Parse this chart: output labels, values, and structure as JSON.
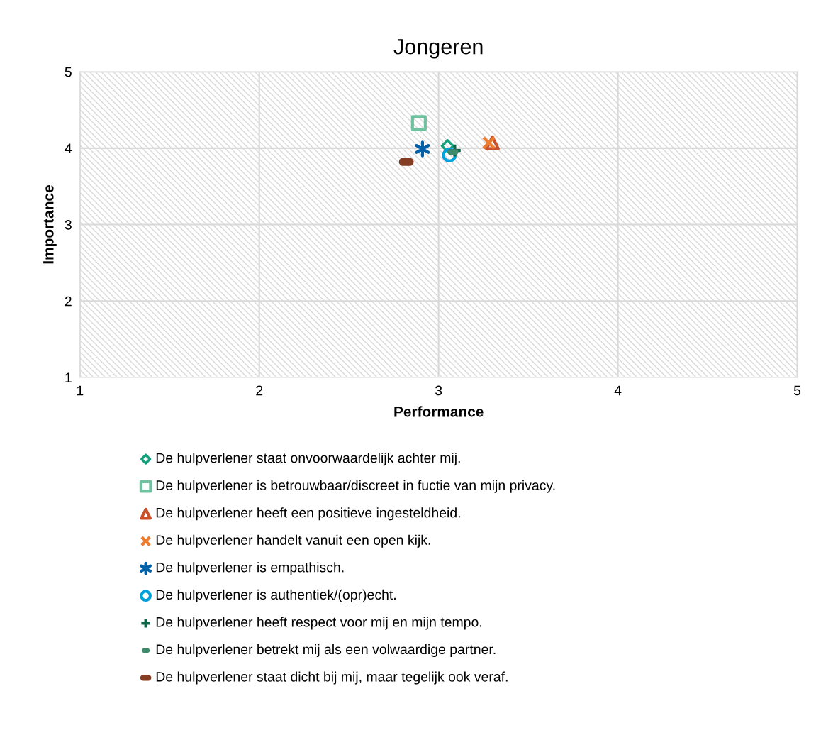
{
  "chart_data": {
    "type": "scatter",
    "title": "Jongeren",
    "xlabel": "Performance",
    "ylabel": "Importance",
    "xlim": [
      1,
      5
    ],
    "xticks": [
      1,
      2,
      3,
      4,
      5
    ],
    "ylim": [
      1,
      5
    ],
    "yticks": [
      1,
      2,
      3,
      4,
      5
    ],
    "grid": true,
    "legend": "bottom",
    "series": [
      {
        "name": "De hulpverlener staat onvoorwaardelijk achter mij.",
        "color": "#13a07a",
        "marker": "diamond",
        "x": [
          3.05
        ],
        "values": [
          4.03
        ]
      },
      {
        "name": "De hulpverlener is betrouwbaar/discreet in fuctie van mijn privacy.",
        "color": "#70c1a0",
        "marker": "square",
        "x": [
          2.89
        ],
        "values": [
          4.33
        ]
      },
      {
        "name": "De hulpverlener heeft een positieve ingesteldheid.",
        "color": "#c8502b",
        "marker": "triangle",
        "x": [
          3.3
        ],
        "values": [
          4.07
        ]
      },
      {
        "name": "De hulpverlener handelt vanuit een open kijk.",
        "color": "#ed7d31",
        "marker": "cross",
        "x": [
          3.28
        ],
        "values": [
          4.07
        ]
      },
      {
        "name": "De hulpverlener is empathisch.",
        "color": "#0060a8",
        "marker": "cross",
        "x": [
          2.91
        ],
        "values": [
          3.99
        ]
      },
      {
        "name": "De hulpverlener is authentiek/(opr)echt.",
        "color": "#00a2dc",
        "marker": "circle",
        "x": [
          3.06
        ],
        "values": [
          3.91
        ]
      },
      {
        "name": "De hulpverlener heeft respect voor mij en mijn tempo.",
        "color": "#106548",
        "marker": "plus",
        "x": [
          3.09
        ],
        "values": [
          3.97
        ]
      },
      {
        "name": "De hulpverlener betrekt mij als een volwaardige partner.",
        "color": "#3f8a6b",
        "x": [
          3.08
        ],
        "values": [
          3.95
        ]
      },
      {
        "name": "De hulpverlener staat dicht bij mij, maar tegelijk ook veraf.",
        "color": "#843c23",
        "x": [
          2.82
        ],
        "values": [
          3.82
        ]
      }
    ]
  }
}
